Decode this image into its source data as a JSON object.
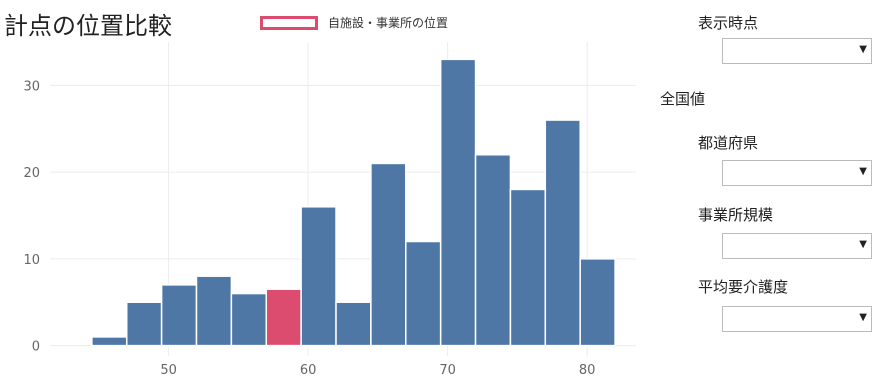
{
  "chart_data": {
    "type": "bar",
    "title": "計点の位置比較",
    "legend": [
      "自施設・事業所の位置"
    ],
    "x_ticks": [
      50,
      60,
      70,
      80
    ],
    "y_ticks": [
      0,
      10,
      20,
      30
    ],
    "xlim": [
      41.5,
      83.5
    ],
    "ylim": [
      -1.2,
      35
    ],
    "bins": [
      {
        "x0": 44.5,
        "x1": 47.0,
        "count": 1
      },
      {
        "x0": 47.0,
        "x1": 49.5,
        "count": 5
      },
      {
        "x0": 49.5,
        "x1": 52.0,
        "count": 7
      },
      {
        "x0": 52.0,
        "x1": 54.5,
        "count": 8
      },
      {
        "x0": 54.5,
        "x1": 57.0,
        "count": 6
      },
      {
        "x0": 57.0,
        "x1": 59.5,
        "count": 6.5,
        "highlight": true
      },
      {
        "x0": 59.5,
        "x1": 62.0,
        "count": 16
      },
      {
        "x0": 62.0,
        "x1": 64.5,
        "count": 5
      },
      {
        "x0": 64.5,
        "x1": 67.0,
        "count": 21
      },
      {
        "x0": 67.0,
        "x1": 69.5,
        "count": 12
      },
      {
        "x0": 69.5,
        "x1": 72.0,
        "count": 33
      },
      {
        "x0": 72.0,
        "x1": 74.5,
        "count": 22
      },
      {
        "x0": 74.5,
        "x1": 77.0,
        "count": 18
      },
      {
        "x0": 77.0,
        "x1": 79.5,
        "count": 26
      },
      {
        "x0": 79.5,
        "x1": 82.0,
        "count": 10
      }
    ],
    "colors": {
      "bar": "#4e77a6",
      "highlight": "#db4c6e"
    },
    "grid": true
  },
  "controls": {
    "display_time_label": "表示時点",
    "national_label": "全国値",
    "prefecture_label": "都道府県",
    "facility_size_label": "事業所規模",
    "care_level_label": "平均要介護度",
    "arrow": "▼"
  }
}
